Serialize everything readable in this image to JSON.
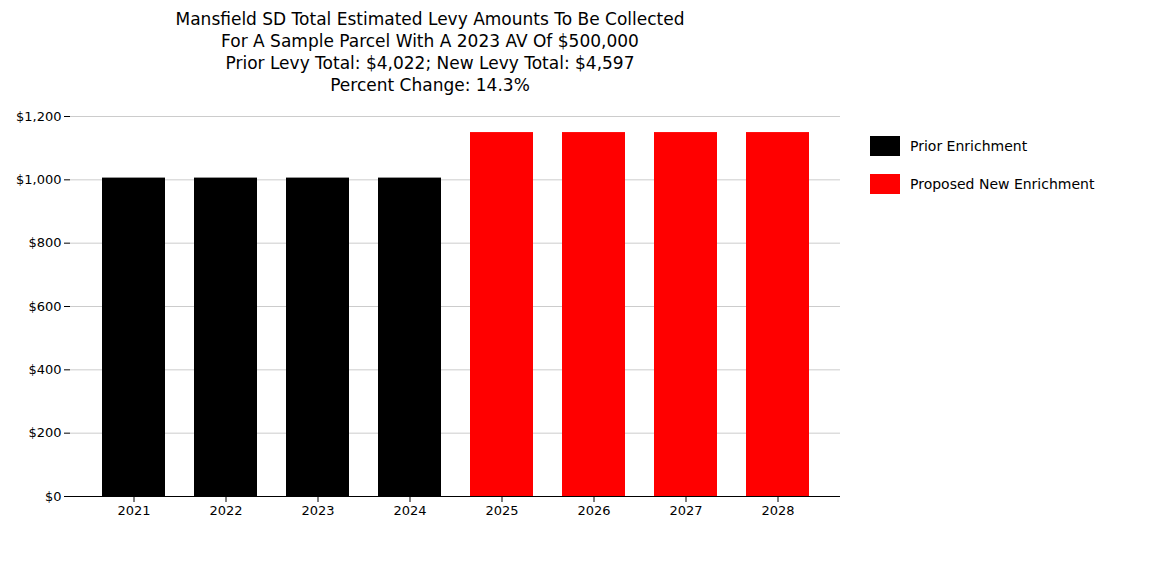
{
  "chart_data": {
    "type": "bar",
    "title": "Mansfield SD Total Estimated Levy Amounts To Be Collected\nFor A Sample Parcel With A 2023 AV Of $500,000\nPrior Levy Total:  $4,022; New Levy Total: $4,597\nPercent Change: 14.3%",
    "categories": [
      "2021",
      "2022",
      "2023",
      "2024",
      "2025",
      "2026",
      "2027",
      "2028"
    ],
    "series": [
      {
        "name": "Prior Enrichment",
        "color": "#000000",
        "values": [
          1005.5,
          1005.5,
          1005.5,
          1005.5,
          null,
          null,
          null,
          null
        ]
      },
      {
        "name": "Proposed New Enrichment",
        "color": "#ff0000",
        "values": [
          null,
          null,
          null,
          null,
          1149.25,
          1149.25,
          1149.25,
          1149.25
        ]
      }
    ],
    "ylim": [
      0,
      1200
    ],
    "yticks": [
      {
        "value": 0,
        "label": "$0"
      },
      {
        "value": 200,
        "label": "$200"
      },
      {
        "value": 400,
        "label": "$400"
      },
      {
        "value": 600,
        "label": "$600"
      },
      {
        "value": 800,
        "label": "$800"
      },
      {
        "value": 1000,
        "label": "$1,000"
      },
      {
        "value": 1200,
        "label": "$1,200"
      }
    ],
    "grid": true,
    "legend": "right"
  }
}
